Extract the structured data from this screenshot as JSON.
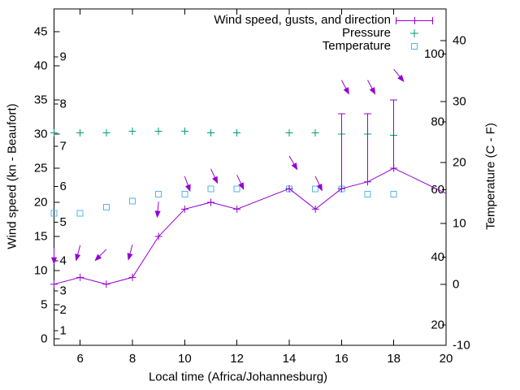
{
  "chart_data": {
    "type": "line",
    "background": "#ffffff",
    "xlabel": "Local time (Africa/Johannesburg)",
    "ylabel_left": "Wind speed (kn - Beaufort)",
    "ylabel_right": "Temperature (C - F)",
    "x_range": [
      5,
      20
    ],
    "x_ticks": [
      6,
      8,
      10,
      12,
      14,
      16,
      18,
      20
    ],
    "y_left": {
      "units": "kn",
      "range": [
        -1,
        48.3
      ],
      "ticks": [
        0,
        5,
        10,
        15,
        20,
        25,
        30,
        35,
        40,
        45
      ]
    },
    "beaufort_scale_labels": [
      {
        "label": "1",
        "kn": 1.2
      },
      {
        "label": "2",
        "kn": 4.2
      },
      {
        "label": "3",
        "kn": 7.0
      },
      {
        "label": "4",
        "kn": 11.4
      },
      {
        "label": "5",
        "kn": 17.1
      },
      {
        "label": "6",
        "kn": 22.3
      },
      {
        "label": "7",
        "kn": 28.2
      },
      {
        "label": "8",
        "kn": 34.4
      },
      {
        "label": "9",
        "kn": 41.3
      }
    ],
    "y_right": {
      "units": "C",
      "range": [
        -10,
        45.2
      ],
      "ticks": [
        -10,
        0,
        10,
        20,
        30,
        40
      ]
    },
    "fahrenheit_scale_labels": [
      20,
      40,
      60,
      80,
      100
    ],
    "legend": {
      "position": "top-right",
      "entries": [
        {
          "label": "Wind speed, gusts, and direction",
          "color": "#9400d3",
          "marker": "errorbar-plus"
        },
        {
          "label": "Pressure",
          "color": "#009e73",
          "marker": "plus"
        },
        {
          "label": "Temperature",
          "color": "#56b4e9",
          "marker": "open-square"
        }
      ]
    },
    "series": {
      "wind_speed": {
        "color": "#9400d3",
        "hours": [
          5,
          6,
          7,
          8,
          9,
          10,
          11,
          12,
          14,
          15,
          16,
          17,
          18
        ],
        "values_kn": [
          8,
          9,
          8,
          9,
          15,
          19,
          20,
          19,
          22,
          19,
          22,
          23,
          25
        ],
        "line_end": {
          "hour": 20,
          "kn": 21.3
        }
      },
      "gusts": {
        "color": "#9400d3",
        "bars": [
          {
            "hour": 16,
            "from_kn": 22,
            "to_kn": 33
          },
          {
            "hour": 17,
            "from_kn": 23,
            "to_kn": 33
          },
          {
            "hour": 18,
            "from_kn": 25,
            "to_kn": 35
          }
        ]
      },
      "wind_direction_arrows": {
        "color": "#9400d3",
        "arrows": [
          {
            "hour": 5,
            "kn": 13.3,
            "dir_deg": 180
          },
          {
            "hour": 6,
            "kn": 13.7,
            "dir_deg": 195
          },
          {
            "hour": 7,
            "kn": 13.1,
            "dir_deg": 225
          },
          {
            "hour": 8,
            "kn": 13.8,
            "dir_deg": 195
          },
          {
            "hour": 9,
            "kn": 20.1,
            "dir_deg": 185
          },
          {
            "hour": 10,
            "kn": 23.8,
            "dir_deg": 160
          },
          {
            "hour": 11,
            "kn": 24.9,
            "dir_deg": 155
          },
          {
            "hour": 12,
            "kn": 24.0,
            "dir_deg": 155
          },
          {
            "hour": 14,
            "kn": 26.8,
            "dir_deg": 150
          },
          {
            "hour": 15,
            "kn": 23.8,
            "dir_deg": 155
          },
          {
            "hour": 16,
            "kn": 37.9,
            "dir_deg": 152
          },
          {
            "hour": 17,
            "kn": 37.9,
            "dir_deg": 152
          },
          {
            "hour": 18,
            "kn": 39.5,
            "dir_deg": 141
          }
        ]
      },
      "pressure": {
        "color": "#009e73",
        "note": "plotted on hidden axis; values given on left-axis pixel scale",
        "hours": [
          5,
          6,
          7,
          8,
          9,
          10,
          11,
          12,
          14,
          15,
          16,
          17,
          18
        ],
        "values_left_scale": [
          30.2,
          30.2,
          30.2,
          30.4,
          30.4,
          30.4,
          30.2,
          30.2,
          30.2,
          30.2,
          30.0,
          30.0,
          29.8
        ]
      },
      "temperature": {
        "color": "#56b4e9",
        "hours": [
          5,
          6,
          7,
          8,
          9,
          10,
          11,
          12,
          14,
          15,
          16,
          17,
          18
        ],
        "values_c": [
          11.7,
          11.7,
          12.7,
          13.7,
          14.8,
          14.8,
          15.7,
          15.7,
          15.7,
          15.7,
          15.7,
          14.8,
          14.8
        ]
      }
    }
  }
}
